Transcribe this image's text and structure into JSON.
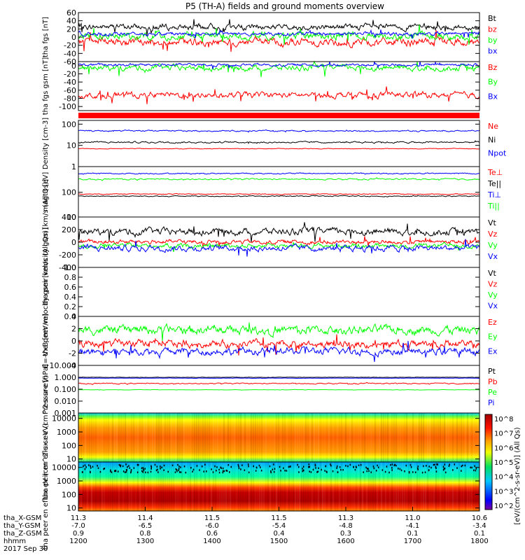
{
  "page": {
    "title": "P5 (TH-A) fields and ground moments overview"
  },
  "colorbar": {
    "label": "[eV/(cm^2-s-sr-eV)] (All Qs)",
    "ticks": [
      "10^8",
      "10^7",
      "10^6",
      "10^5",
      "10^4",
      "10^3",
      "10^2"
    ]
  },
  "chart_data": [
    {
      "type": "line",
      "ylabel": "tha fgs [nT]",
      "ylim": [
        -60,
        60
      ],
      "yticks": [
        "60",
        "40",
        "20",
        "0",
        "-20",
        "-40",
        "-60"
      ],
      "yvals": [
        60,
        40,
        20,
        0,
        -20,
        -40,
        -60
      ],
      "series": [
        {
          "name": "Bt",
          "color": "#000000",
          "base": 25,
          "amp": 6
        },
        {
          "name": "bz",
          "color": "#ff0000",
          "base": -12,
          "amp": 8
        },
        {
          "name": "by",
          "color": "#00ff00",
          "base": 2,
          "amp": 8
        },
        {
          "name": "bx",
          "color": "#0000ff",
          "base": 8,
          "amp": 4
        }
      ]
    },
    {
      "type": "line",
      "ylabel": "tha fgs gsm [nT]",
      "ylim": [
        -110,
        10
      ],
      "yticks": [
        "0",
        "-20",
        "-40",
        "-60",
        "-80",
        "-100"
      ],
      "yvals": [
        0,
        -20,
        -40,
        -60,
        -80,
        -100
      ],
      "series": [
        {
          "name": "Bz",
          "color": "#ff0000",
          "base": -72,
          "amp": 6
        },
        {
          "name": "By",
          "color": "#00ff00",
          "base": -5,
          "amp": 6
        },
        {
          "name": "Bx",
          "color": "#0000ff",
          "base": 2,
          "amp": 3
        }
      ]
    },
    {
      "type": "line",
      "ylabel": "Density [cm-3]",
      "log": true,
      "ylim": [
        1,
        150
      ],
      "yticks": [
        "100",
        "10",
        "1"
      ],
      "yvals": [
        100,
        10,
        1
      ],
      "series": [
        {
          "name": "Ne",
          "color": "#ff0000",
          "base": 7,
          "amp": 0.4
        },
        {
          "name": "Ni",
          "color": "#000000",
          "base": 14,
          "amp": 3
        },
        {
          "name": "Npot",
          "color": "#0000ff",
          "base": 48,
          "amp": 8
        }
      ]
    },
    {
      "type": "line",
      "ylabel": "magt3 [eV]",
      "log": true,
      "ylim": [
        10,
        1100
      ],
      "yticks": [
        "100",
        "10"
      ],
      "yvals": [
        100,
        10
      ],
      "series": [
        {
          "name": "Te⊥",
          "color": "#ff0000",
          "base": 85,
          "amp": 6
        },
        {
          "name": "Te||",
          "color": "#000000",
          "base": 70,
          "amp": 6
        },
        {
          "name": "Ti⊥",
          "color": "#0000ff",
          "base": 580,
          "amp": 70
        },
        {
          "name": "Ti||",
          "color": "#00ff00",
          "base": 340,
          "amp": 50
        }
      ]
    },
    {
      "type": "line",
      "ylabel": "tha peir velocity gsm [km/s (All Qs)]",
      "ylim": [
        -400,
        400
      ],
      "yticks": [
        "400",
        "200",
        "0",
        "-200",
        "-400"
      ],
      "yvals": [
        400,
        200,
        0,
        -200,
        -400
      ],
      "series": [
        {
          "name": "Vt",
          "color": "#000000",
          "base": 170,
          "amp": 45
        },
        {
          "name": "Vz",
          "color": "#ff0000",
          "base": 5,
          "amp": 30
        },
        {
          "name": "Vy",
          "color": "#00ff00",
          "base": -55,
          "amp": 30
        },
        {
          "name": "Vx",
          "color": "#0000ff",
          "base": -95,
          "amp": 40
        }
      ]
    },
    {
      "type": "line",
      "ylabel": "tha peer velocity gsm [km/s (All Qs)]",
      "ylim": [
        0,
        1
      ],
      "yticks": [
        "1.0",
        "0.8",
        "0.6",
        "0.4",
        "0.2",
        "0.0"
      ],
      "yvals": [
        1,
        0.8,
        0.6,
        0.4,
        0.2,
        0
      ],
      "series": [
        {
          "name": "Vt",
          "color": "#000000"
        },
        {
          "name": "Vz",
          "color": "#ff0000"
        },
        {
          "name": "Vy",
          "color": "#00ff00"
        },
        {
          "name": "Vx",
          "color": "#0000ff"
        }
      ]
    },
    {
      "type": "line",
      "ylabel": "E=-VxB [mV/m]",
      "ylim": [
        -4,
        4
      ],
      "yticks": [
        "4",
        "2",
        "0",
        "-2",
        "-4"
      ],
      "yvals": [
        4,
        2,
        0,
        -2,
        -4
      ],
      "series": [
        {
          "name": "Ez",
          "color": "#ff0000",
          "base": -0.5,
          "amp": 0.5
        },
        {
          "name": "Ey",
          "color": "#00ff00",
          "base": 1.8,
          "amp": 0.6
        },
        {
          "name": "Ex",
          "color": "#0000ff",
          "base": -1.7,
          "amp": 0.5
        }
      ]
    },
    {
      "type": "line",
      "ylabel": "Pressure [nPa]",
      "log": true,
      "ylim": [
        0.001,
        10
      ],
      "yticks": [
        "10.000",
        "1.000",
        "0.100",
        "0.010",
        "0.001"
      ],
      "yvals": [
        10,
        1,
        0.1,
        0.01,
        0.001
      ],
      "series": [
        {
          "name": "Pt",
          "color": "#000000",
          "base": 1.0,
          "amp": 0.05
        },
        {
          "name": "Pb",
          "color": "#ff0000",
          "base": 0.3,
          "amp": 0.08
        },
        {
          "name": "Pe",
          "color": "#00ff00",
          "base": 0.09,
          "amp": 0.005
        },
        {
          "name": "Pi",
          "color": "#0000ff",
          "base": 0.85,
          "amp": 0.05
        }
      ]
    },
    {
      "type": "heatmap",
      "ylabel": "tha peir en eflux eV (cm^2-s-sr-eV)",
      "log": true,
      "ylim": [
        6,
        25000
      ],
      "yticks": [
        "10000",
        "1000",
        "100",
        "10"
      ],
      "yvals": [
        10000,
        1000,
        100,
        10
      ]
    },
    {
      "type": "heatmap",
      "ylabel": "tha peer en eflux eV (cm^2-s-sr-eV)",
      "log": true,
      "ylim": [
        6,
        25000
      ],
      "yticks": [
        "10000",
        "1000",
        "100",
        "10"
      ],
      "yvals": [
        10000,
        1000,
        100,
        10
      ]
    }
  ],
  "time_axis": {
    "rows": [
      {
        "label": "tha_X-GSM",
        "values": [
          "11.3",
          "11.4",
          "11.5",
          "11.5",
          "11.3",
          "11.0",
          "10.6"
        ]
      },
      {
        "label": "tha_Y-GSM",
        "values": [
          "-7.0",
          "-6.5",
          "-6.0",
          "-5.4",
          "-4.8",
          "-4.1",
          "-3.4"
        ]
      },
      {
        "label": "tha_Z-GSM",
        "values": [
          "0.9",
          "0.8",
          "0.6",
          "0.4",
          "0.3",
          "0.1",
          "0.1"
        ]
      },
      {
        "label": "hhmm",
        "values": [
          "1200",
          "1300",
          "1400",
          "1500",
          "1600",
          "1700",
          "1800"
        ]
      }
    ],
    "date": "2017 Sep 30"
  }
}
